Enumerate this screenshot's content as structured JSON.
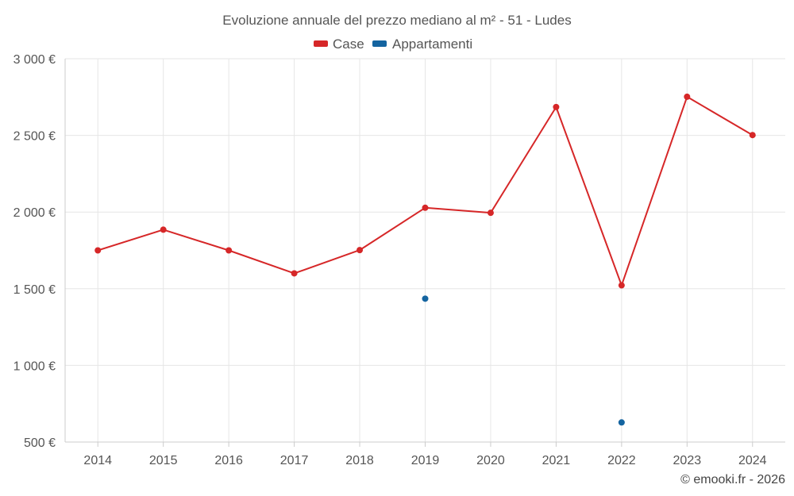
{
  "chart_data": {
    "type": "line",
    "title": "Evoluzione annuale del prezzo mediano al m² - 51 - Ludes",
    "categories": [
      "2014",
      "2015",
      "2016",
      "2017",
      "2018",
      "2019",
      "2020",
      "2021",
      "2022",
      "2023",
      "2024"
    ],
    "series": [
      {
        "name": "Case",
        "color": "#d62728",
        "values": [
          1750,
          1885,
          1750,
          1600,
          1752,
          2028,
          1995,
          2685,
          1522,
          2752,
          2502
        ]
      },
      {
        "name": "Appartamenti",
        "color": "#1464a0",
        "values": [
          null,
          null,
          null,
          null,
          null,
          1435,
          null,
          null,
          628,
          null,
          null
        ]
      }
    ],
    "ylim": [
      500,
      3000
    ],
    "yticks": [
      500,
      1000,
      1500,
      2000,
      2500,
      3000
    ],
    "ytick_labels": [
      "500 €",
      "1 000 €",
      "1 500 €",
      "2 000 €",
      "2 500 €",
      "3 000 €"
    ],
    "xlabel": "",
    "ylabel": "",
    "grid": true,
    "legend_position": "top-center"
  },
  "credit": "© emooki.fr - 2026"
}
